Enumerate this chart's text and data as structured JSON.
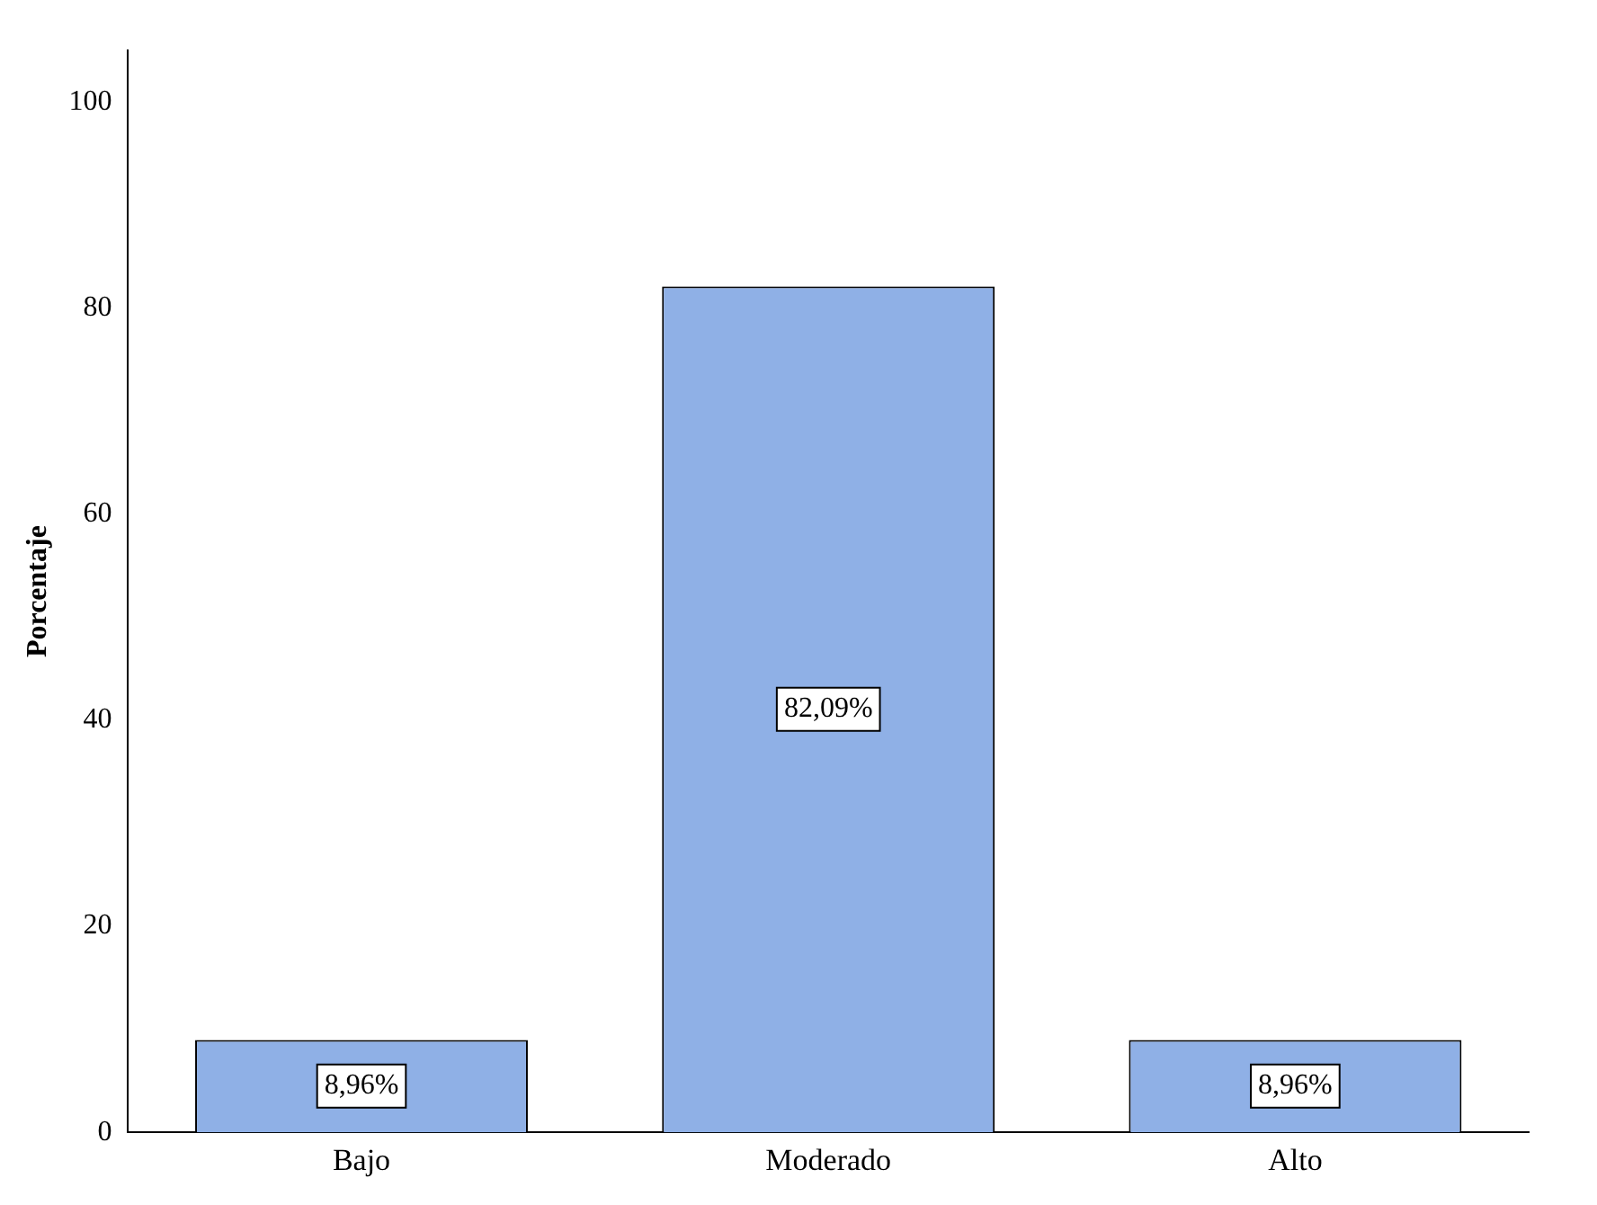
{
  "chart_data": {
    "type": "bar",
    "ylabel": "Porcentaje",
    "categories": [
      "Bajo",
      "Moderado",
      "Alto"
    ],
    "values": [
      8.96,
      82.09,
      8.96
    ],
    "color": "#8fb0e6",
    "value_labels": [
      "8,96%",
      "82,09%",
      "8,96%"
    ],
    "ylim": [
      0,
      105
    ],
    "yticks": [
      0,
      20,
      40,
      60,
      80,
      100
    ],
    "grid": false,
    "legend": false
  }
}
